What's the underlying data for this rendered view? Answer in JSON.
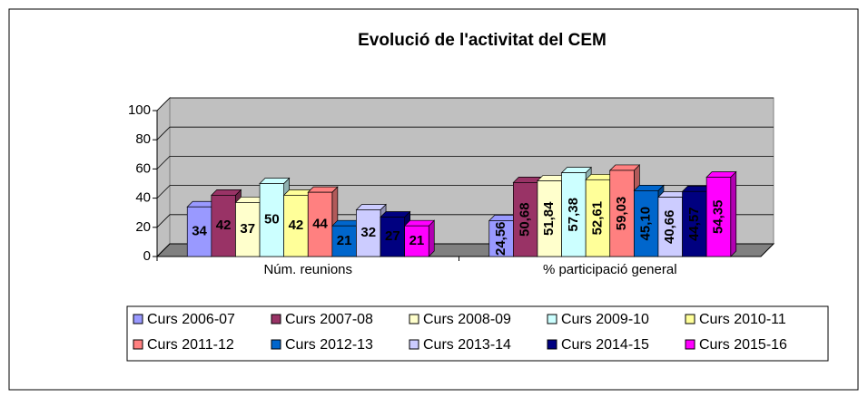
{
  "chart_data": {
    "type": "bar3d",
    "title": "Evolució de l'activitat del CEM",
    "categories": [
      "Núm. reunions",
      "% participació general"
    ],
    "ylim": [
      0,
      100
    ],
    "yticks": [
      0,
      20,
      40,
      60,
      80,
      100
    ],
    "grid": true,
    "legend": "bottom",
    "series": [
      {
        "name": "Curs 2006-07",
        "color": "#9999ff",
        "values": [
          34,
          24.56
        ],
        "value_labels": [
          "34",
          "24,56"
        ]
      },
      {
        "name": "Curs 2007-08",
        "color": "#993366",
        "values": [
          42,
          50.68
        ],
        "value_labels": [
          "42",
          "50,68"
        ]
      },
      {
        "name": "Curs 2008-09",
        "color": "#ffffcc",
        "values": [
          37,
          51.84
        ],
        "value_labels": [
          "37",
          "51,84"
        ]
      },
      {
        "name": "Curs 2009-10",
        "color": "#ccffff",
        "values": [
          50,
          57.38
        ],
        "value_labels": [
          "50",
          "57,38"
        ]
      },
      {
        "name": "Curs 2010-11",
        "color": "#ffff99",
        "values": [
          42,
          52.61
        ],
        "value_labels": [
          "42",
          "52,61"
        ]
      },
      {
        "name": "Curs 2011-12",
        "color": "#ff8080",
        "values": [
          44,
          59.03
        ],
        "value_labels": [
          "44",
          "59,03"
        ]
      },
      {
        "name": "Curs 2012-13",
        "color": "#0066cc",
        "values": [
          21,
          45.1
        ],
        "value_labels": [
          "21",
          "45,10"
        ]
      },
      {
        "name": "Curs 2013-14",
        "color": "#ccccff",
        "values": [
          32,
          40.66
        ],
        "value_labels": [
          "32",
          "40,66"
        ]
      },
      {
        "name": "Curs 2014-15",
        "color": "#000080",
        "values": [
          27,
          44.57
        ],
        "value_labels": [
          "27",
          "44,57"
        ]
      },
      {
        "name": "Curs 2015-16",
        "color": "#ff00ff",
        "values": [
          21,
          54.35
        ],
        "value_labels": [
          "21",
          "54,35"
        ]
      }
    ]
  }
}
